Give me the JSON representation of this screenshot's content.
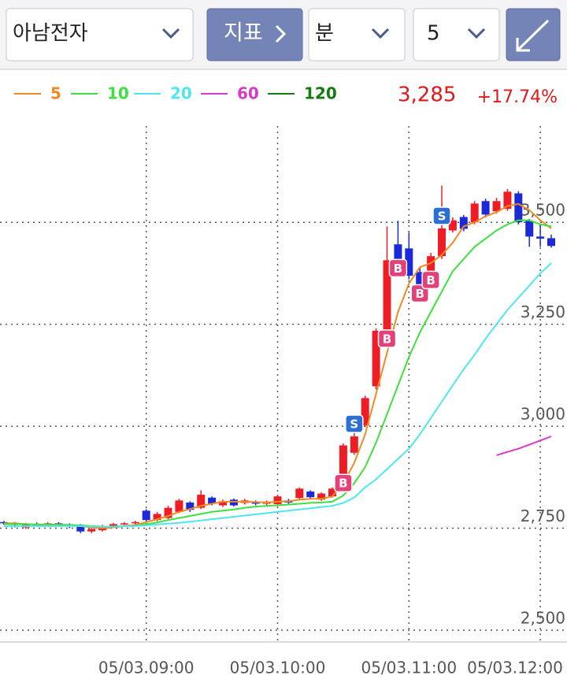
{
  "toolbar": {
    "stock": "아남전자",
    "indicator_button": "지표",
    "interval_unit": "분",
    "interval": "5"
  },
  "header": {
    "price": "3,285",
    "change": "+17.74%"
  },
  "chart_data": {
    "type": "candlestick",
    "categories": [
      null,
      null,
      null,
      null,
      null,
      null,
      null,
      null,
      null,
      null,
      null,
      null,
      null,
      "05/03.09:00",
      null,
      null,
      null,
      null,
      null,
      null,
      null,
      null,
      null,
      null,
      null,
      "05/03.10:00",
      null,
      null,
      null,
      null,
      null,
      null,
      null,
      null,
      null,
      null,
      null,
      "05/03.11:00",
      null,
      null,
      null,
      null,
      null,
      null,
      null,
      null,
      null,
      null,
      null,
      "05/03.12:00",
      null
    ],
    "open": [
      2765,
      2762,
      2752,
      2760,
      2758,
      2762,
      2758,
      2758,
      2742,
      2745,
      2755,
      2760,
      2762,
      2793,
      2770,
      2775,
      2790,
      2813,
      2800,
      2825,
      2806,
      2820,
      2812,
      2815,
      2810,
      2809,
      2818,
      2824,
      2840,
      2820,
      2828,
      2880,
      2935,
      3002,
      3098,
      3234,
      3446,
      3436,
      3378,
      3378,
      3417,
      3480,
      3513,
      3500,
      3552,
      3527,
      3533,
      3571,
      3504,
      3465,
      3461
    ],
    "high": [
      2768,
      2765,
      2763,
      2764,
      2765,
      2765,
      2762,
      2760,
      2752,
      2758,
      2763,
      2765,
      2768,
      2797,
      2790,
      2805,
      2822,
      2816,
      2843,
      2828,
      2820,
      2823,
      2822,
      2818,
      2818,
      2832,
      2822,
      2850,
      2843,
      2838,
      2850,
      2958,
      2985,
      3075,
      3240,
      3490,
      3504,
      3475,
      3390,
      3425,
      3590,
      3512,
      3518,
      3552,
      3558,
      3560,
      3582,
      3576,
      3508,
      3495,
      3470
    ],
    "low": [
      2758,
      2752,
      2748,
      2755,
      2755,
      2754,
      2750,
      2738,
      2738,
      2742,
      2752,
      2756,
      2758,
      2766,
      2767,
      2772,
      2787,
      2790,
      2797,
      2806,
      2802,
      2803,
      2808,
      2806,
      2806,
      2806,
      2810,
      2820,
      2822,
      2817,
      2825,
      2876,
      2930,
      2998,
      3090,
      3230,
      3400,
      3360,
      3330,
      3370,
      3410,
      3475,
      3478,
      3495,
      3512,
      3522,
      3528,
      3495,
      3440,
      3440,
      3438
    ],
    "close": [
      2762,
      2758,
      2760,
      2758,
      2762,
      2758,
      2755,
      2742,
      2748,
      2755,
      2760,
      2762,
      2765,
      2770,
      2785,
      2800,
      2818,
      2795,
      2832,
      2810,
      2816,
      2806,
      2818,
      2810,
      2815,
      2828,
      2813,
      2847,
      2826,
      2835,
      2847,
      2953,
      2975,
      3069,
      3234,
      3407,
      3407,
      3369,
      3345,
      3417,
      3485,
      3505,
      3484,
      3546,
      3519,
      3552,
      3575,
      3500,
      3465,
      3460,
      3442
    ],
    "up_color": "#ee1c25",
    "down_color": "#1a2ad8",
    "signals": [
      null,
      null,
      null,
      null,
      null,
      null,
      null,
      null,
      null,
      null,
      null,
      null,
      null,
      null,
      null,
      null,
      null,
      null,
      null,
      null,
      null,
      null,
      null,
      null,
      null,
      null,
      null,
      null,
      null,
      null,
      null,
      "B",
      "S",
      null,
      null,
      "B",
      "B",
      null,
      "B",
      "B",
      "S",
      null,
      null,
      null,
      null,
      null,
      null,
      null,
      null,
      null,
      null
    ],
    "series": [
      {
        "name": "5",
        "color": "#f08a24",
        "values": [
          2762,
          2762,
          2760,
          2759,
          2759,
          2759,
          2758,
          2755,
          2752,
          2750,
          2752,
          2755,
          2758,
          2765,
          2772,
          2780,
          2790,
          2797,
          2805,
          2810,
          2815,
          2815,
          2815,
          2814,
          2813,
          2815,
          2816,
          2820,
          2822,
          2822,
          2828,
          2860,
          2910,
          2980,
          3080,
          3180,
          3280,
          3350,
          3390,
          3400,
          3420,
          3450,
          3490,
          3500,
          3515,
          3525,
          3540,
          3545,
          3530,
          3505,
          3485
        ]
      },
      {
        "name": "10",
        "color": "#3ee03e",
        "values": [
          2760,
          2760,
          2760,
          2759,
          2759,
          2758,
          2758,
          2757,
          2755,
          2754,
          2754,
          2755,
          2756,
          2760,
          2764,
          2770,
          2775,
          2780,
          2785,
          2790,
          2793,
          2796,
          2800,
          2803,
          2805,
          2806,
          2808,
          2810,
          2812,
          2813,
          2815,
          2830,
          2860,
          2900,
          2960,
          3030,
          3100,
          3170,
          3230,
          3280,
          3330,
          3380,
          3410,
          3440,
          3460,
          3480,
          3495,
          3505,
          3505,
          3495,
          3490
        ]
      },
      {
        "name": "20",
        "color": "#4ee6f0",
        "values": [
          2755,
          2755,
          2755,
          2755,
          2755,
          2755,
          2755,
          2755,
          2754,
          2754,
          2754,
          2755,
          2755,
          2757,
          2759,
          2761,
          2763,
          2766,
          2769,
          2772,
          2775,
          2778,
          2781,
          2784,
          2787,
          2790,
          2793,
          2796,
          2799,
          2802,
          2805,
          2812,
          2825,
          2850,
          2870,
          2895,
          2920,
          2945,
          2980,
          3020,
          3060,
          3100,
          3140,
          3175,
          3215,
          3250,
          3285,
          3315,
          3345,
          3375,
          3400
        ]
      },
      {
        "name": "60",
        "color": "#d63ac6",
        "values": [
          null,
          null,
          null,
          null,
          null,
          null,
          null,
          null,
          null,
          null,
          null,
          null,
          null,
          null,
          null,
          null,
          null,
          null,
          null,
          null,
          null,
          null,
          null,
          null,
          null,
          null,
          null,
          null,
          null,
          null,
          null,
          null,
          null,
          null,
          null,
          null,
          null,
          null,
          null,
          null,
          null,
          null,
          null,
          null,
          null,
          2929,
          2937,
          2945,
          2955,
          2965,
          2975
        ]
      },
      {
        "name": "120",
        "color": "#117a11",
        "values": [
          null,
          null,
          null,
          null,
          null,
          null,
          null,
          null,
          null,
          null,
          null,
          null,
          null,
          null,
          null,
          null,
          null,
          null,
          null,
          null,
          null,
          null,
          null,
          null,
          null,
          null,
          null,
          null,
          null,
          null,
          null,
          null,
          null,
          null,
          null,
          null,
          null,
          null,
          null,
          null,
          null,
          null,
          null,
          null,
          null,
          null,
          null,
          null,
          null,
          null,
          null
        ]
      }
    ],
    "ylim": [
      2471,
      3736
    ],
    "yticks": [
      {
        "value": 2500,
        "label": "2,500"
      },
      {
        "value": 2750,
        "label": "2,750"
      },
      {
        "value": 3000,
        "label": "3,000"
      },
      {
        "value": 3250,
        "label": "3,250"
      },
      {
        "value": 3500,
        "label": "3,500"
      }
    ],
    "grid": true
  }
}
